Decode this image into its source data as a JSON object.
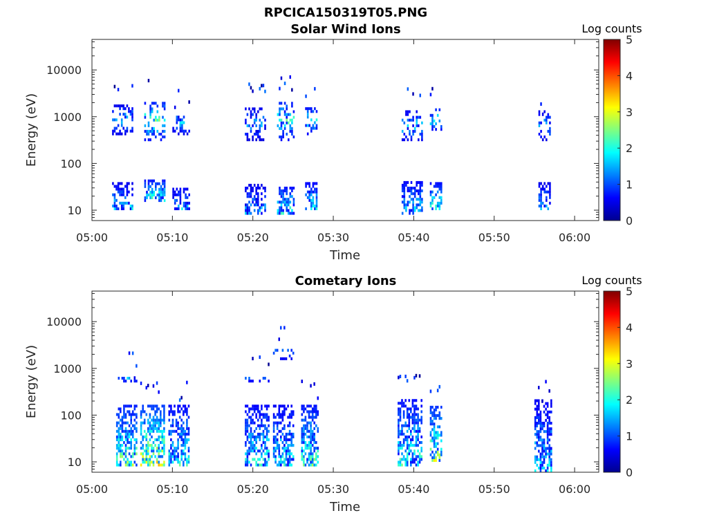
{
  "figure": {
    "title": "RPCICA150319T05.PNG"
  },
  "colorscale": {
    "label": "Log counts",
    "ticks": [
      "0",
      "1",
      "2",
      "3",
      "4",
      "5"
    ],
    "stops": [
      "#00008f",
      "#0000ff",
      "#00ffff",
      "#ffff00",
      "#ff0000",
      "#800000"
    ]
  },
  "chart_data": [
    {
      "type": "heatmap",
      "title": "Solar Wind Ions",
      "xlabel": "Time",
      "ylabel": "Energy (eV)",
      "x_ticks": [
        "05:00",
        "05:10",
        "05:20",
        "05:30",
        "05:40",
        "05:50",
        "06:00"
      ],
      "y_ticks": [
        "10",
        "100",
        "1000",
        "10000"
      ],
      "y_scale": "log",
      "y_range": [
        6,
        45000
      ],
      "x_range": [
        "05:00",
        "06:03"
      ],
      "z_range": [
        0,
        5
      ],
      "bursts": [
        {
          "start": "05:02.5",
          "end": "05:05",
          "energy_bands": [
            [
              10,
              35
            ],
            [
              400,
              1600
            ]
          ],
          "peak_log_counts": 2.1
        },
        {
          "start": "05:06.5",
          "end": "05:09",
          "energy_bands": [
            [
              15,
              40
            ],
            [
              300,
              2000
            ]
          ],
          "peak_log_counts": 2.8
        },
        {
          "start": "05:10",
          "end": "05:12",
          "energy_bands": [
            [
              10,
              30
            ],
            [
              400,
              1200
            ]
          ],
          "peak_log_counts": 2.0
        },
        {
          "start": "05:19",
          "end": "05:21.5",
          "energy_bands": [
            [
              8,
              35
            ],
            [
              300,
              1500
            ]
          ],
          "peak_log_counts": 1.8
        },
        {
          "start": "05:23",
          "end": "05:25",
          "energy_bands": [
            [
              8,
              30
            ],
            [
              300,
              2000
            ]
          ],
          "peak_log_counts": 2.6
        },
        {
          "start": "05:26.5",
          "end": "05:28",
          "energy_bands": [
            [
              10,
              35
            ],
            [
              400,
              1500
            ]
          ],
          "peak_log_counts": 2.5
        },
        {
          "start": "05:38.5",
          "end": "05:41",
          "energy_bands": [
            [
              8,
              40
            ],
            [
              300,
              1200
            ]
          ],
          "peak_log_counts": 2.2
        },
        {
          "start": "05:42",
          "end": "05:43.5",
          "energy_bands": [
            [
              10,
              35
            ],
            [
              500,
              1500
            ]
          ],
          "peak_log_counts": 2.7
        },
        {
          "start": "05:55.5",
          "end": "05:57",
          "energy_bands": [
            [
              10,
              35
            ],
            [
              300,
              1200
            ]
          ],
          "peak_log_counts": 2.0
        }
      ]
    },
    {
      "type": "heatmap",
      "title": "Cometary Ions",
      "xlabel": "Time",
      "ylabel": "Energy (eV)",
      "x_ticks": [
        "05:00",
        "05:10",
        "05:20",
        "05:30",
        "05:40",
        "05:50",
        "06:00"
      ],
      "y_ticks": [
        "10",
        "1000",
        "10000"
      ],
      "y_tick_note": "100",
      "y_scale": "log",
      "y_range": [
        6,
        45000
      ],
      "x_range": [
        "05:00",
        "06:03"
      ],
      "z_range": [
        0,
        5
      ],
      "bursts": [
        {
          "start": "05:03",
          "end": "05:05.5",
          "energy_bands": [
            [
              8,
              150
            ],
            [
              500,
              600
            ]
          ],
          "peak_log_counts": 3.0
        },
        {
          "start": "05:06",
          "end": "05:09",
          "energy_bands": [
            [
              8,
              150
            ]
          ],
          "peak_log_counts": 3.6
        },
        {
          "start": "05:09.5",
          "end": "05:12",
          "energy_bands": [
            [
              8,
              150
            ]
          ],
          "peak_log_counts": 2.5
        },
        {
          "start": "05:19",
          "end": "05:22",
          "energy_bands": [
            [
              8,
              150
            ],
            [
              500,
              600
            ]
          ],
          "peak_log_counts": 2.5
        },
        {
          "start": "05:22.5",
          "end": "05:25",
          "energy_bands": [
            [
              8,
              150
            ],
            [
              1500,
              2500
            ]
          ],
          "peak_log_counts": 2.3
        },
        {
          "start": "05:26",
          "end": "05:28",
          "energy_bands": [
            [
              8,
              150
            ]
          ],
          "peak_log_counts": 2.8
        },
        {
          "start": "05:38",
          "end": "05:41",
          "energy_bands": [
            [
              8,
              200
            ]
          ],
          "peak_log_counts": 2.6
        },
        {
          "start": "05:42",
          "end": "05:43.5",
          "energy_bands": [
            [
              10,
              150
            ]
          ],
          "peak_log_counts": 3.3
        },
        {
          "start": "05:55",
          "end": "05:57",
          "energy_bands": [
            [
              6,
              200
            ]
          ],
          "peak_log_counts": 2.2
        }
      ]
    }
  ]
}
